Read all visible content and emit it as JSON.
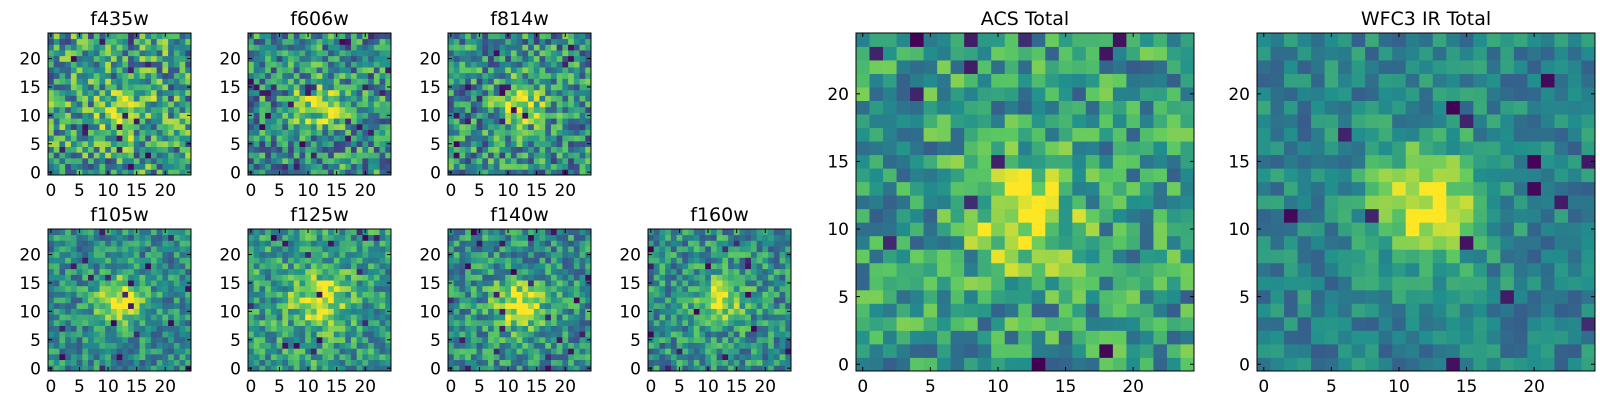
{
  "colormap": "viridis",
  "colormap_stops": [
    "#440154",
    "#3b528b",
    "#21908d",
    "#5dc962",
    "#fde725"
  ],
  "chart_data": [
    {
      "type": "heatmap",
      "title": "f435w",
      "grid_size": 25,
      "xticks": [
        0,
        5,
        10,
        15,
        20
      ],
      "yticks": [
        0,
        5,
        10,
        15,
        20
      ],
      "xlim": [
        0,
        24
      ],
      "ylim": [
        0,
        24
      ],
      "center": [
        13,
        11
      ],
      "peak": 0.82,
      "sigma": 3.0,
      "noise": 0.35,
      "base": 0.55,
      "seed": 11
    },
    {
      "type": "heatmap",
      "title": "f606w",
      "grid_size": 25,
      "xticks": [
        0,
        5,
        10,
        15,
        20
      ],
      "yticks": [
        0,
        5,
        10,
        15,
        20
      ],
      "xlim": [
        0,
        24
      ],
      "ylim": [
        0,
        24
      ],
      "center": [
        12,
        12
      ],
      "peak": 0.92,
      "sigma": 2.8,
      "noise": 0.32,
      "base": 0.5,
      "seed": 23
    },
    {
      "type": "heatmap",
      "title": "f814w",
      "grid_size": 25,
      "xticks": [
        0,
        5,
        10,
        15,
        20
      ],
      "yticks": [
        0,
        5,
        10,
        15,
        20
      ],
      "xlim": [
        0,
        24
      ],
      "ylim": [
        0,
        24
      ],
      "center": [
        12,
        12
      ],
      "peak": 0.95,
      "sigma": 2.6,
      "noise": 0.32,
      "base": 0.5,
      "seed": 37
    },
    {
      "type": "heatmap",
      "title": "f105w",
      "grid_size": 25,
      "xticks": [
        0,
        5,
        10,
        15,
        20
      ],
      "yticks": [
        0,
        5,
        10,
        15,
        20
      ],
      "xlim": [
        0,
        24
      ],
      "ylim": [
        0,
        24
      ],
      "center": [
        12,
        12
      ],
      "peak": 0.97,
      "sigma": 3.0,
      "noise": 0.22,
      "base": 0.48,
      "seed": 41
    },
    {
      "type": "heatmap",
      "title": "f125w",
      "grid_size": 25,
      "xticks": [
        0,
        5,
        10,
        15,
        20
      ],
      "yticks": [
        0,
        5,
        10,
        15,
        20
      ],
      "xlim": [
        0,
        24
      ],
      "ylim": [
        0,
        24
      ],
      "center": [
        12,
        12
      ],
      "peak": 0.95,
      "sigma": 3.4,
      "noise": 0.25,
      "base": 0.55,
      "seed": 53
    },
    {
      "type": "heatmap",
      "title": "f140w",
      "grid_size": 25,
      "xticks": [
        0,
        5,
        10,
        15,
        20
      ],
      "yticks": [
        0,
        5,
        10,
        15,
        20
      ],
      "xlim": [
        0,
        24
      ],
      "ylim": [
        0,
        24
      ],
      "center": [
        12,
        11
      ],
      "peak": 0.95,
      "sigma": 3.2,
      "noise": 0.25,
      "base": 0.5,
      "seed": 67
    },
    {
      "type": "heatmap",
      "title": "f160w",
      "grid_size": 25,
      "xticks": [
        0,
        5,
        10,
        15,
        20
      ],
      "yticks": [
        0,
        5,
        10,
        15,
        20
      ],
      "xlim": [
        0,
        24
      ],
      "ylim": [
        0,
        24
      ],
      "center": [
        12,
        12
      ],
      "peak": 0.96,
      "sigma": 2.8,
      "noise": 0.25,
      "base": 0.5,
      "seed": 79
    },
    {
      "type": "heatmap",
      "title": "ACS Total",
      "grid_size": 25,
      "xticks": [
        0,
        5,
        10,
        15,
        20
      ],
      "yticks": [
        0,
        5,
        10,
        15,
        20
      ],
      "xlim": [
        0,
        24
      ],
      "ylim": [
        0,
        24
      ],
      "center": [
        12,
        11
      ],
      "peak": 0.97,
      "sigma": 2.8,
      "noise": 0.26,
      "base": 0.55,
      "seed": 97
    },
    {
      "type": "heatmap",
      "title": "WFC3 IR Total",
      "grid_size": 25,
      "xticks": [
        0,
        5,
        10,
        15,
        20
      ],
      "yticks": [
        0,
        5,
        10,
        15,
        20
      ],
      "xlim": [
        0,
        24
      ],
      "ylim": [
        0,
        24
      ],
      "center": [
        12,
        12
      ],
      "peak": 0.98,
      "sigma": 3.1,
      "noise": 0.16,
      "base": 0.45,
      "seed": 131
    }
  ]
}
